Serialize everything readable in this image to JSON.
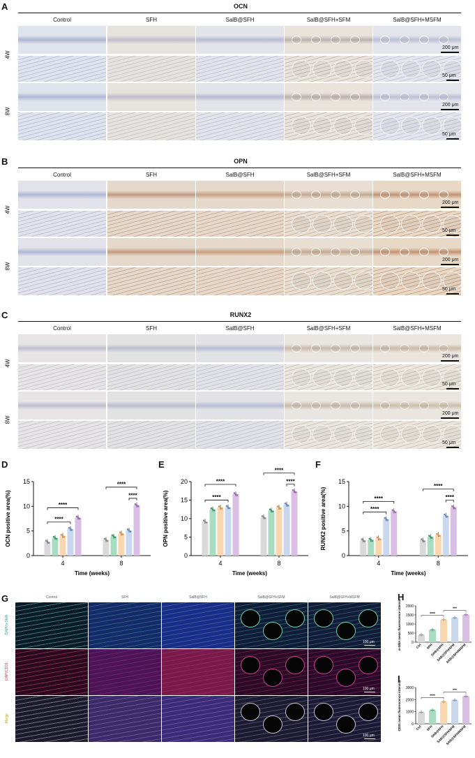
{
  "panels_ihc": [
    {
      "letter": "A",
      "stain": "OCN",
      "columns": [
        "Control",
        "SFH",
        "SalB@SFH",
        "SalB@SFH+SFM",
        "SalB@SFH+MSFM"
      ],
      "rows": [
        "4W",
        "8W"
      ],
      "scale_low": "200 μm",
      "scale_high": "50 μm"
    },
    {
      "letter": "B",
      "stain": "OPN",
      "columns": [
        "Control",
        "SFH",
        "SalB@SFH",
        "SalB@SFH+SFM",
        "SalB@SFH+MSFM"
      ],
      "rows": [
        "4W",
        "8W"
      ],
      "scale_low": "200 μm",
      "scale_high": "50 μm"
    },
    {
      "letter": "C",
      "stain": "RUNX2",
      "columns": [
        "Control",
        "SFH",
        "SalB@SFH",
        "SalB@SFH+SFM",
        "SalB@SFH+MSFM"
      ],
      "rows": [
        "4W",
        "8W"
      ],
      "scale_low": "200 μm",
      "scale_high": "50 μm"
    }
  ],
  "panel_G": {
    "letter": "G",
    "columns": [
      "Control",
      "SFH",
      "SalB@SFH",
      "SalB@SFH+SFM",
      "SalB@SFH+MSFM"
    ],
    "rows": [
      "DAPI/α-SMA",
      "DAPI/CD31",
      "Merge"
    ],
    "scale": "100 μm"
  },
  "colors": {
    "control": "#d9d9d9",
    "sfh": "#a8dcc0",
    "salb": "#f8d6b0",
    "salb_sfm": "#c9d8ee",
    "salb_msfm": "#d9bfe3"
  },
  "chart_data": [
    {
      "letter": "D",
      "type": "bar",
      "ylabel": "OCN positive area(%)",
      "xlabel": "Time (weeks)",
      "categories": [
        "4",
        "8"
      ],
      "ylim": [
        0,
        15
      ],
      "yticks": [
        0,
        5,
        10,
        15
      ],
      "series": [
        {
          "values": [
            2.8,
            3.2
          ]
        },
        {
          "values": [
            3.6,
            3.9
          ]
        },
        {
          "values": [
            4.0,
            4.5
          ]
        },
        {
          "values": [
            5.4,
            5.1
          ]
        },
        {
          "values": [
            7.7,
            10.2
          ]
        }
      ],
      "annotations": [
        "****",
        "****",
        "****",
        "****"
      ]
    },
    {
      "letter": "E",
      "type": "bar",
      "ylabel": "OPN positive area(%)",
      "xlabel": "Time (weeks)",
      "categories": [
        "4",
        "8"
      ],
      "ylim": [
        0,
        20
      ],
      "yticks": [
        0,
        5,
        10,
        15,
        20
      ],
      "series": [
        {
          "values": [
            9.2,
            10.4
          ]
        },
        {
          "values": [
            12.5,
            12.2
          ]
        },
        {
          "values": [
            13.0,
            13.0
          ]
        },
        {
          "values": [
            13.1,
            13.8
          ]
        },
        {
          "values": [
            16.6,
            17.4
          ]
        }
      ],
      "annotations": [
        "****",
        "****",
        "****",
        "****"
      ]
    },
    {
      "letter": "F",
      "type": "bar",
      "ylabel": "RUNX2 positive area(%)",
      "xlabel": "Time (weeks)",
      "categories": [
        "4",
        "8"
      ],
      "ylim": [
        0,
        15
      ],
      "yticks": [
        0,
        5,
        10,
        15
      ],
      "series": [
        {
          "values": [
            3.1,
            3.1
          ]
        },
        {
          "values": [
            3.2,
            3.8
          ]
        },
        {
          "values": [
            3.5,
            4.2
          ]
        },
        {
          "values": [
            7.4,
            8.1
          ]
        },
        {
          "values": [
            9.0,
            9.8
          ]
        }
      ],
      "annotations": [
        "****",
        "****",
        "****",
        "****"
      ]
    },
    {
      "letter": "H",
      "type": "bar",
      "ylabel": "α-SMA mean fluorescence intensity",
      "categories": [
        "Ctrl",
        "SFH",
        "SAB@SFH",
        "SAB@SFH/SFM",
        "SAB@SFH/MSFM"
      ],
      "ylim": [
        0,
        2000
      ],
      "yticks": [
        0,
        500,
        1000,
        1500,
        2000
      ],
      "values": [
        400,
        680,
        1240,
        1340,
        1510
      ],
      "annotations": [
        "****",
        "***"
      ]
    },
    {
      "letter": "I",
      "type": "bar",
      "ylabel": "CD31 mean fluorescence intensity",
      "categories": [
        "Ctrl",
        "SFH",
        "SAB@SFH",
        "SAB@SFH/SFM",
        "SAB@SFH/MSFM"
      ],
      "ylim": [
        0,
        3000
      ],
      "yticks": [
        0,
        1000,
        2000,
        3000
      ],
      "values": [
        950,
        1130,
        1830,
        1950,
        2270
      ],
      "annotations": [
        "****",
        "***"
      ]
    }
  ]
}
